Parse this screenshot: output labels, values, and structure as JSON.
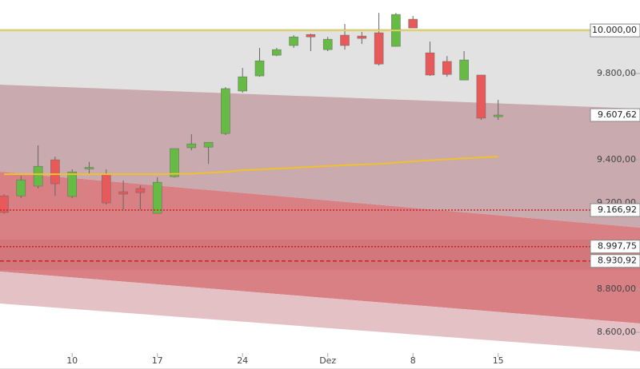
{
  "chart_data": {
    "type": "candlestick",
    "categories": [
      null,
      null,
      null,
      null,
      "10",
      null,
      null,
      null,
      null,
      "17",
      null,
      null,
      null,
      null,
      "24",
      null,
      null,
      null,
      null,
      "Dez",
      null,
      null,
      null,
      null,
      "8",
      null,
      null,
      null,
      null,
      "15"
    ],
    "candles": [
      {
        "open": 9233,
        "high": 9240,
        "low": 9150,
        "close": 9156
      },
      {
        "open": 9233,
        "high": 9326,
        "low": 9222,
        "close": 9307
      },
      {
        "open": 9278,
        "high": 9467,
        "low": 9267,
        "close": 9370
      },
      {
        "open": 9400,
        "high": 9415,
        "low": 9233,
        "close": 9289
      },
      {
        "open": 9230,
        "high": 9356,
        "low": 9222,
        "close": 9344
      },
      {
        "open": 9363,
        "high": 9390,
        "low": 9330,
        "close": 9365
      },
      {
        "open": 9333,
        "high": 9356,
        "low": 9193,
        "close": 9200
      },
      {
        "open": 9252,
        "high": 9304,
        "low": 9170,
        "close": 9241
      },
      {
        "open": 9267,
        "high": 9281,
        "low": 9170,
        "close": 9248
      },
      {
        "open": 9152,
        "high": 9319,
        "low": 9152,
        "close": 9296
      },
      {
        "open": 9322,
        "high": 9452,
        "low": 9318,
        "close": 9452
      },
      {
        "open": 9456,
        "high": 9519,
        "low": 9444,
        "close": 9474
      },
      {
        "open": 9459,
        "high": 9481,
        "low": 9381,
        "close": 9481
      },
      {
        "open": 9522,
        "high": 9737,
        "low": 9515,
        "close": 9730
      },
      {
        "open": 9719,
        "high": 9826,
        "low": 9711,
        "close": 9785
      },
      {
        "open": 9789,
        "high": 9919,
        "low": 9785,
        "close": 9859
      },
      {
        "open": 9885,
        "high": 9919,
        "low": 9881,
        "close": 9911
      },
      {
        "open": 9930,
        "high": 9978,
        "low": 9919,
        "close": 9970
      },
      {
        "open": 9981,
        "high": 9985,
        "low": 9904,
        "close": 9970
      },
      {
        "open": 9911,
        "high": 9970,
        "low": 9904,
        "close": 9959
      },
      {
        "open": 9978,
        "high": 10030,
        "low": 9911,
        "close": 9930
      },
      {
        "open": 9974,
        "high": 9993,
        "low": 9937,
        "close": 9963
      },
      {
        "open": 9989,
        "high": 10081,
        "low": 9837,
        "close": 9844
      },
      {
        "open": 9926,
        "high": 10081,
        "low": 9926,
        "close": 10074
      },
      {
        "open": 10052,
        "high": 10067,
        "low": 10011,
        "close": 10011
      },
      {
        "open": 9896,
        "high": 9948,
        "low": 9789,
        "close": 9793
      },
      {
        "open": 9856,
        "high": 9881,
        "low": 9785,
        "close": 9796
      },
      {
        "open": 9770,
        "high": 9904,
        "low": 9770,
        "close": 9863
      },
      {
        "open": 9793,
        "high": 9793,
        "low": 9585,
        "close": 9593
      },
      {
        "open": 9600,
        "high": 9678,
        "low": 9585,
        "close": 9607.62
      }
    ],
    "up_color": "#66bb44",
    "down_color": "#e85a5a",
    "ma": {
      "color": "#f0c030",
      "values": [
        9333,
        9333,
        9333,
        9333,
        9333,
        9333,
        9333,
        9333,
        9333,
        9333,
        9335,
        9335,
        9340,
        9344,
        9352,
        9355,
        9359,
        9363,
        9367,
        9371,
        9375,
        9378,
        9381,
        9387,
        9393,
        9398,
        9402,
        9407,
        9411,
        9415
      ]
    },
    "ylim": [
      8430,
      10141
    ],
    "yticks": [
      {
        "value": 9800,
        "label": "9.800,00"
      },
      {
        "value": 9400,
        "label": "9.400,00"
      },
      {
        "value": 9200,
        "label": "9.200,00"
      },
      {
        "value": 8800,
        "label": "8.800,00"
      },
      {
        "value": 8600,
        "label": "8.600,00"
      }
    ],
    "levels": [
      {
        "value": 10000,
        "label": "10.000,00",
        "color": "#e0d060",
        "style": "solid"
      },
      {
        "value": 9607.62,
        "label": "9.607,62",
        "color": "#999999",
        "style": "none"
      },
      {
        "value": 9166.92,
        "label": "9.166,92",
        "color": "#cc2222",
        "style": "dotted"
      },
      {
        "value": 8997.75,
        "label": "8.997,75",
        "color": "#cc2222",
        "style": "dotted"
      },
      {
        "value": 8930.92,
        "label": "8.930,92",
        "color": "#cc2222",
        "style": "dashed"
      }
    ]
  }
}
